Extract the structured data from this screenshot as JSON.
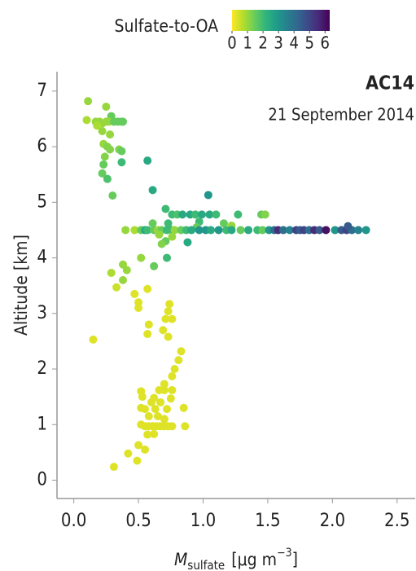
{
  "chart_data": {
    "type": "scatter",
    "annotations": {
      "campaign": "AC14",
      "date": "21 September 2014"
    },
    "y_label": "Altitude [km]",
    "x_label": {
      "symbol": "M",
      "subscript": "sulfate",
      "unit": "[μg m",
      "exponent": "−3",
      "unit_end": "]"
    },
    "colorbar": {
      "title": "Sulfate-to-OA",
      "lim": [
        0,
        6.3
      ],
      "ticks": [
        0,
        1,
        2,
        3,
        4,
        5,
        6
      ],
      "colormap": [
        "#fde725",
        "#b5de2b",
        "#6ece58",
        "#35b779",
        "#1f9e89",
        "#26828e",
        "#31688e",
        "#3e4989",
        "#482878",
        "#440154"
      ]
    },
    "xlim": [
      -0.13,
      2.64
    ],
    "xticks": [
      {
        "value": 0,
        "label": "0.0"
      },
      0.5,
      {
        "value": 1,
        "label": "1.0"
      },
      1.5,
      {
        "value": 2,
        "label": "2.0"
      },
      2.5
    ],
    "ylim": [
      -0.33,
      7.35
    ],
    "yticks": [
      0,
      1,
      2,
      3,
      4,
      5,
      6,
      7
    ],
    "x": [
      0.11,
      0.25,
      0.29,
      0.1,
      0.17,
      0.2,
      0.22,
      0.25,
      0.27,
      0.31,
      0.34,
      0.37,
      0.38,
      0.18,
      0.22,
      0.28,
      0.23,
      0.26,
      0.35,
      0.28,
      0.37,
      0.24,
      0.37,
      0.57,
      0.23,
      0.22,
      0.26,
      0.61,
      0.3,
      0.71,
      1.04,
      0.76,
      0.8,
      0.84,
      0.9,
      0.94,
      0.99,
      1.05,
      1.1,
      1.27,
      1.45,
      1.48,
      0.97,
      0.73,
      1.16,
      1.22,
      0.95,
      0.61,
      0.4,
      0.47,
      0.52,
      0.55,
      0.57,
      0.62,
      0.65,
      0.68,
      0.72,
      0.76,
      0.78,
      0.83,
      0.87,
      0.91,
      0.97,
      1.02,
      1.06,
      1.12,
      1.18,
      1.22,
      1.29,
      1.35,
      1.42,
      1.46,
      1.51,
      1.55,
      1.58,
      1.62,
      1.67,
      1.72,
      1.75,
      1.78,
      1.82,
      1.86,
      1.9,
      1.95,
      2.02,
      2.07,
      2.11,
      2.15,
      2.2,
      2.26,
      2.12,
      0.66,
      0.76,
      0.71,
      0.68,
      0.88,
      0.52,
      0.72,
      0.62,
      0.38,
      0.41,
      0.29,
      0.38,
      0.33,
      0.57,
      0.47,
      0.5,
      0.74,
      0.5,
      0.73,
      0.71,
      0.76,
      0.58,
      0.57,
      0.69,
      0.73,
      0.15,
      0.83,
      0.81,
      0.78,
      0.76,
      0.7,
      0.66,
      0.7,
      0.76,
      0.52,
      0.53,
      0.62,
      0.75,
      0.67,
      0.6,
      0.52,
      0.55,
      0.63,
      0.72,
      0.85,
      0.58,
      0.65,
      0.7,
      0.52,
      0.55,
      0.58,
      0.61,
      0.64,
      0.67,
      0.7,
      0.73,
      0.76,
      0.86,
      0.62,
      0.57,
      0.5,
      0.55,
      0.42,
      0.49,
      0.31
    ],
    "y": [
      6.82,
      6.72,
      6.55,
      6.48,
      6.45,
      6.45,
      6.42,
      6.45,
      6.45,
      6.45,
      6.45,
      6.45,
      6.45,
      6.38,
      6.28,
      6.22,
      6.05,
      6.0,
      5.95,
      5.95,
      5.92,
      5.82,
      5.72,
      5.75,
      5.68,
      5.52,
      5.42,
      5.22,
      5.12,
      4.88,
      5.13,
      4.78,
      4.78,
      4.78,
      4.78,
      4.78,
      4.78,
      4.78,
      4.78,
      4.78,
      4.78,
      4.78,
      4.65,
      4.62,
      4.62,
      4.58,
      4.55,
      4.62,
      4.5,
      4.5,
      4.5,
      4.5,
      4.5,
      4.5,
      4.5,
      4.5,
      4.5,
      4.5,
      4.5,
      4.5,
      4.5,
      4.5,
      4.5,
      4.5,
      4.5,
      4.5,
      4.5,
      4.5,
      4.5,
      4.5,
      4.5,
      4.5,
      4.5,
      4.5,
      4.5,
      4.5,
      4.5,
      4.5,
      4.5,
      4.5,
      4.5,
      4.5,
      4.5,
      4.5,
      4.5,
      4.5,
      4.5,
      4.5,
      4.5,
      4.5,
      4.57,
      4.42,
      4.38,
      4.3,
      4.25,
      4.28,
      4.0,
      4.0,
      3.85,
      3.88,
      3.78,
      3.73,
      3.6,
      3.47,
      3.44,
      3.35,
      3.2,
      3.17,
      3.1,
      3.04,
      2.9,
      2.9,
      2.8,
      2.63,
      2.7,
      2.58,
      2.53,
      2.32,
      2.16,
      2.0,
      1.87,
      1.73,
      1.62,
      1.62,
      1.62,
      1.6,
      1.5,
      1.48,
      1.47,
      1.4,
      1.4,
      1.3,
      1.28,
      1.28,
      1.28,
      1.3,
      1.15,
      1.15,
      1.1,
      1.0,
      0.97,
      0.97,
      0.97,
      0.97,
      0.97,
      0.97,
      0.97,
      0.97,
      0.97,
      0.83,
      0.82,
      0.63,
      0.55,
      0.48,
      0.35,
      0.24
    ],
    "color_values": [
      1,
      1,
      1.5,
      0.8,
      1,
      1,
      1,
      1,
      1,
      1.5,
      1.5,
      1.5,
      1.5,
      0.8,
      1,
      1,
      1,
      1.2,
      1.2,
      1.2,
      1.5,
      1.2,
      2,
      2.5,
      1.5,
      1.5,
      1.8,
      2.5,
      1.5,
      2,
      3,
      2,
      1.8,
      2.5,
      2.5,
      2,
      2.5,
      2.5,
      2,
      2,
      1.5,
      1.2,
      2,
      2,
      1.5,
      1,
      1.5,
      1.5,
      1,
      0.8,
      1.5,
      2.5,
      2,
      1.5,
      1,
      1.5,
      2,
      2,
      1,
      1.5,
      2,
      2.5,
      3,
      3,
      2.5,
      3,
      2,
      2.5,
      1.5,
      2.5,
      2,
      1.5,
      3,
      4,
      5.5,
      4,
      3.5,
      5,
      4.5,
      5,
      4,
      5.5,
      4.5,
      6,
      3,
      4.5,
      5,
      4,
      3.5,
      3,
      4.5,
      1,
      1,
      1.5,
      1.2,
      2.5,
      1,
      2,
      1.5,
      1,
      1,
      0.8,
      1,
      0.5,
      0.3,
      0.3,
      0.3,
      0.3,
      0.3,
      0.3,
      0.3,
      0.3,
      0.3,
      0.3,
      0.3,
      0.3,
      0.3,
      0.3,
      0.3,
      0.3,
      0.3,
      0.3,
      0.3,
      0.3,
      0.3,
      0.3,
      0.3,
      0.3,
      0.3,
      0.3,
      0.3,
      0.3,
      0.3,
      0.3,
      0.3,
      0.3,
      0.3,
      0.3,
      0.3,
      0.3,
      0.3,
      0.3,
      0.3,
      0.3,
      0.3,
      0.3,
      0.3,
      0.3,
      0.3,
      0.3,
      0.3,
      0.3,
      0.3,
      0.3,
      0.3,
      0.3
    ]
  }
}
